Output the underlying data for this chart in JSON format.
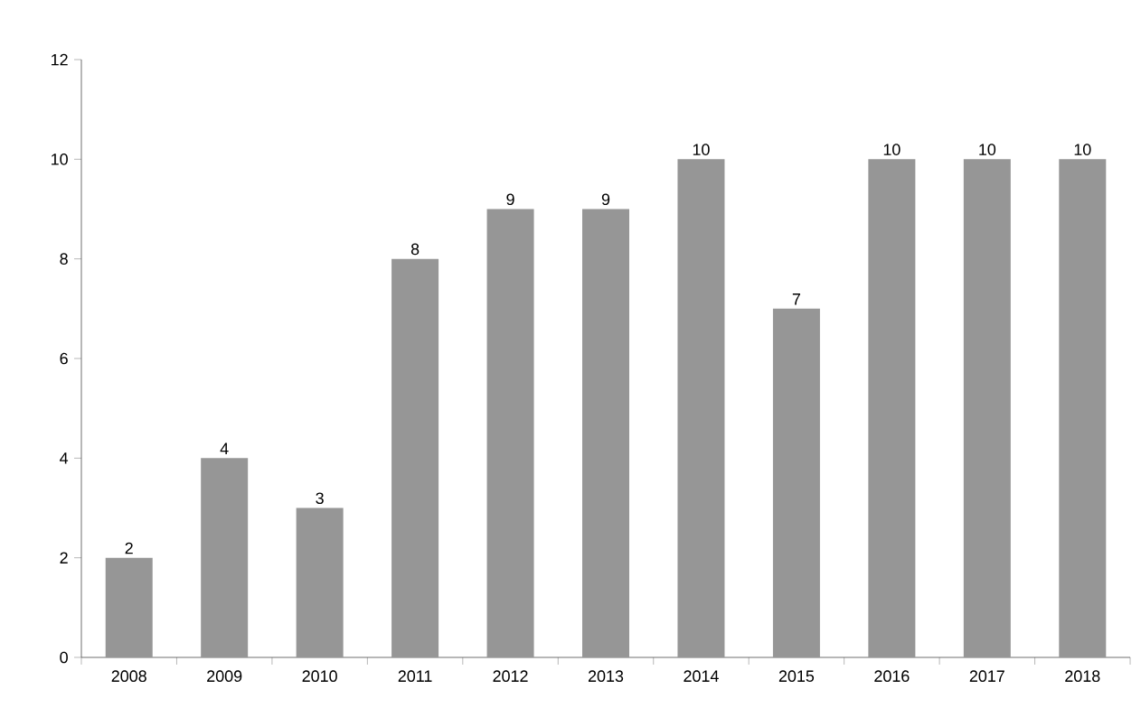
{
  "chart_data": {
    "type": "bar",
    "categories": [
      "2008",
      "2009",
      "2010",
      "2011",
      "2012",
      "2013",
      "2014",
      "2015",
      "2016",
      "2017",
      "2018"
    ],
    "values": [
      2,
      4,
      3,
      8,
      9,
      9,
      10,
      7,
      10,
      10,
      10
    ],
    "color": "#969696",
    "ylim": [
      0,
      12
    ],
    "yticks": [
      0,
      2,
      4,
      6,
      8,
      10,
      12
    ],
    "data_labels": true,
    "grid": false
  }
}
